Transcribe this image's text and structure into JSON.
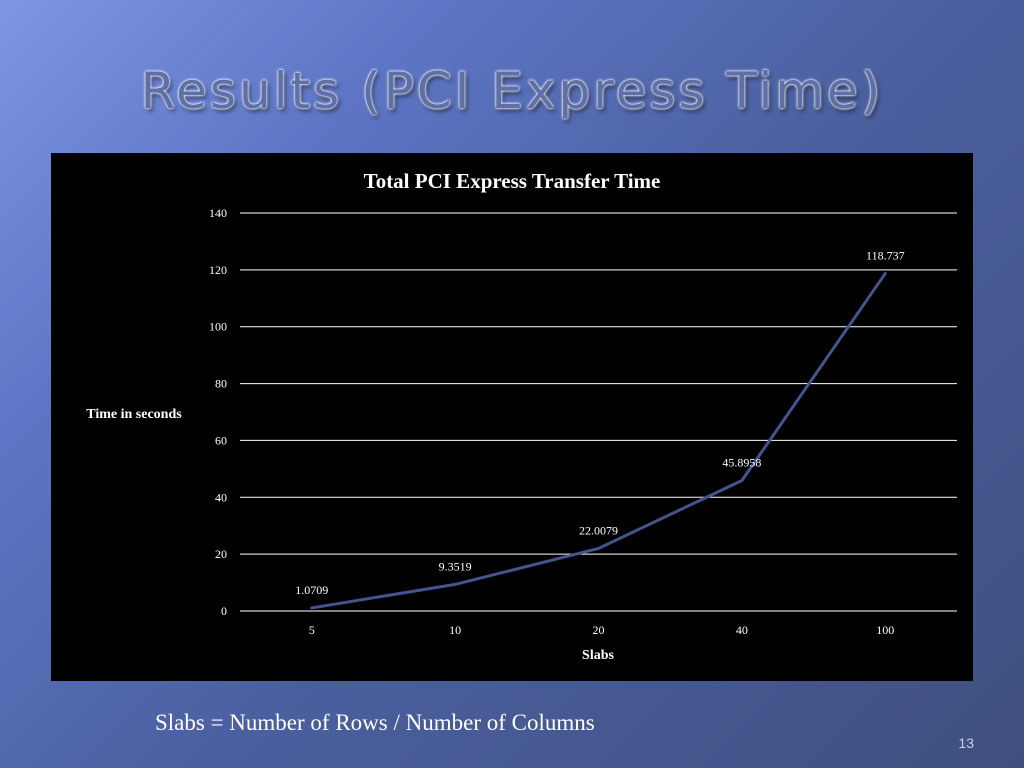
{
  "slide": {
    "title": "Results (PCI Express Time)",
    "caption": "Slabs = Number of Rows / Number of Columns",
    "page_number": "13"
  },
  "colors": {
    "line": "#44548f",
    "grid": "#ffffff",
    "chart_background": "#000000",
    "text": "#ffffff"
  },
  "chart_data": {
    "type": "line",
    "title": "Total PCI Express Transfer Time",
    "xlabel": "Slabs",
    "ylabel": "Time in seconds",
    "categories": [
      "5",
      "10",
      "20",
      "40",
      "100"
    ],
    "series": [
      {
        "values": [
          1.0709,
          9.3519,
          22.0079,
          45.8958,
          118.737
        ],
        "data_labels": [
          "1.0709",
          "9.3519",
          "22.0079",
          "45.8958",
          "118.737"
        ]
      }
    ],
    "ylim": [
      0,
      140
    ],
    "yticks": [
      0,
      20,
      40,
      60,
      80,
      100,
      120,
      140
    ],
    "grid": true,
    "legend": false
  }
}
